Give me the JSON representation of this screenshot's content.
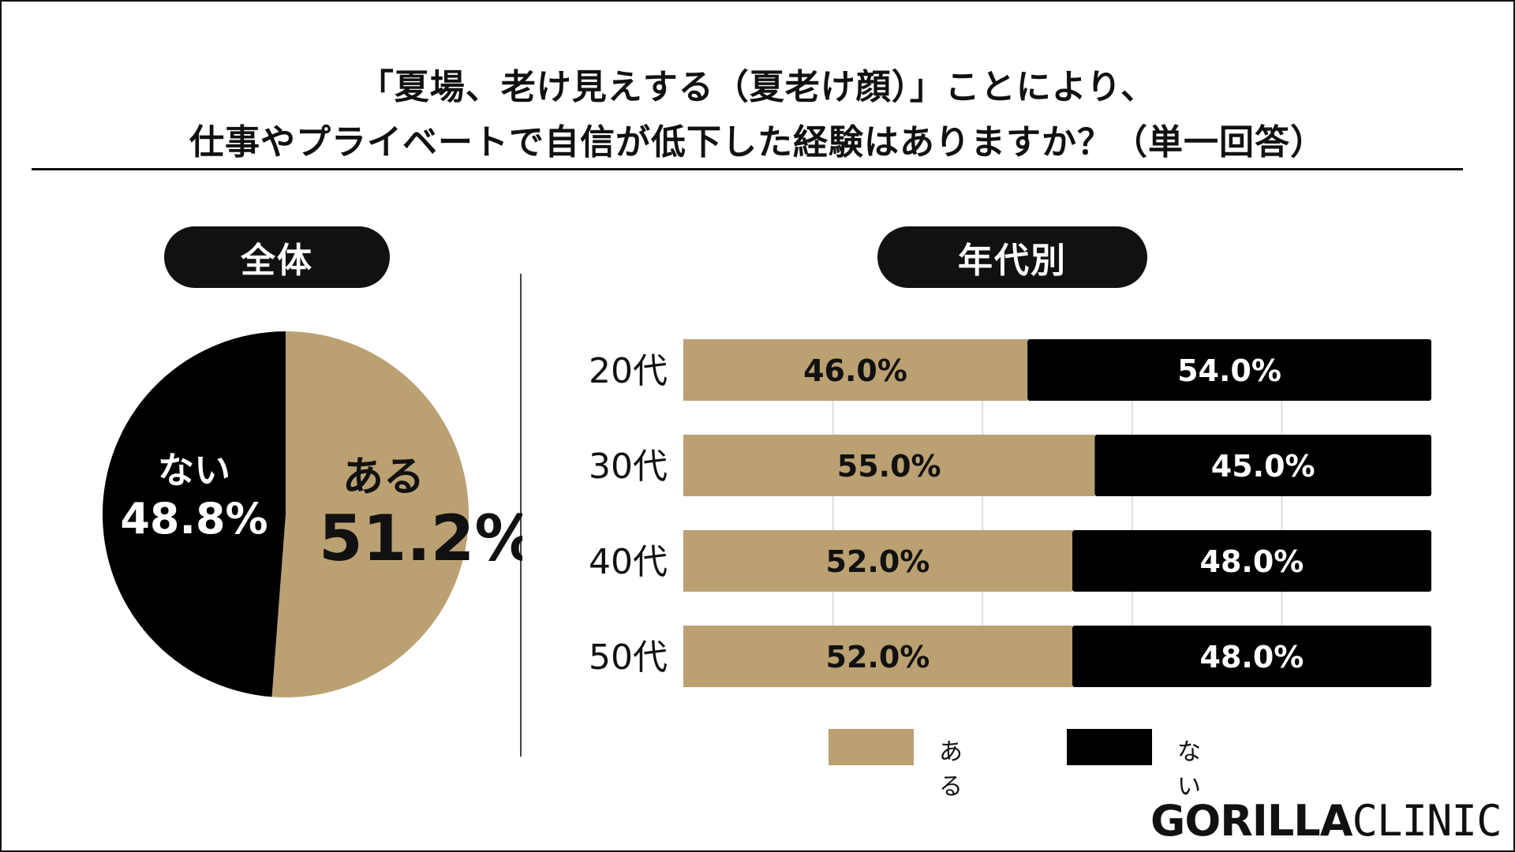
{
  "title": {
    "line1": "「夏場、老け見えする（夏老け顔）」ことにより、",
    "line2": "仕事やプライベートで自信が低下した経験はありますか？（単一回答）"
  },
  "colors": {
    "aru": "#BBA072",
    "nai": "#000000",
    "ink": "#111111",
    "grid": "#dddddd"
  },
  "chart_data": [
    {
      "type": "pie",
      "heading": "全体",
      "slices": [
        {
          "label": "ある",
          "value": 51.2,
          "display": "51.2%",
          "color": "#BBA072"
        },
        {
          "label": "ない",
          "value": 48.8,
          "display": "48.8%",
          "color": "#000000"
        }
      ]
    },
    {
      "type": "bar",
      "orientation": "horizontal",
      "stacked": true,
      "heading": "年代別",
      "categories": [
        "20代",
        "30代",
        "40代",
        "50代"
      ],
      "xlim": [
        0,
        100
      ],
      "grid": true,
      "legend": "bottom",
      "series": [
        {
          "name": "ある",
          "color": "#BBA072",
          "values": [
            46.0,
            55.0,
            52.0,
            52.0
          ],
          "labels": [
            "46.0%",
            "55.0%",
            "52.0%",
            "52.0%"
          ]
        },
        {
          "name": "ない",
          "color": "#000000",
          "values": [
            54.0,
            45.0,
            48.0,
            48.0
          ],
          "labels": [
            "54.0%",
            "45.0%",
            "48.0%",
            "48.0%"
          ]
        }
      ]
    }
  ],
  "legend": {
    "aru_label": "ある",
    "nai_label": "ない"
  },
  "logo": {
    "bold": "GORILLA",
    "light": "CLINIC"
  }
}
